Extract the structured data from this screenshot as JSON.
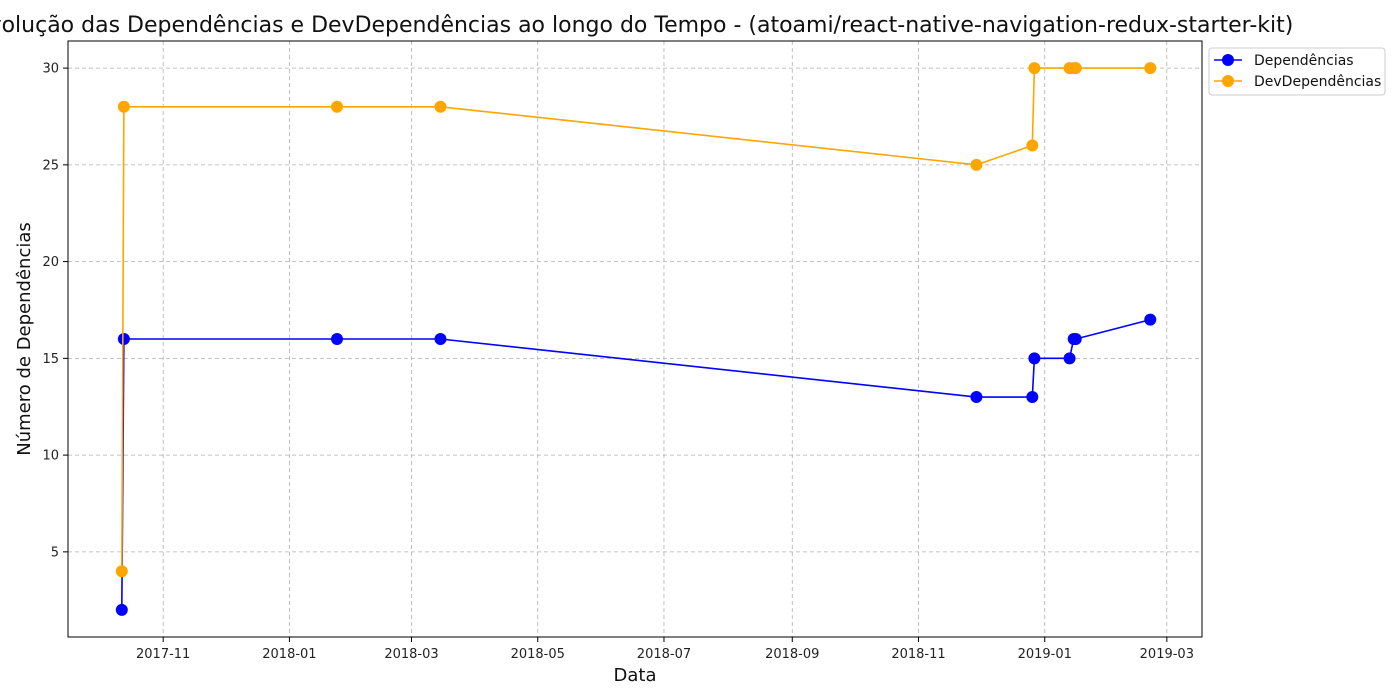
{
  "chart_data": {
    "type": "line",
    "title": "Evolução das Dependências e DevDependências ao longo do Tempo - (atoami/react-native-navigation-redux-starter-kit)",
    "xlabel": "Data",
    "ylabel": "Número de Dependências",
    "x_type": "date",
    "xlim": [
      "2017-09-16",
      "2019-03-18"
    ],
    "ylim": [
      0.6,
      31.4
    ],
    "x_ticks": [
      "2017-11-01",
      "2018-01-01",
      "2018-03-01",
      "2018-05-01",
      "2018-07-01",
      "2018-09-01",
      "2018-11-01",
      "2019-01-01",
      "2019-03-01"
    ],
    "x_tick_labels": [
      "2017-11",
      "2018-01",
      "2018-03",
      "2018-05",
      "2018-07",
      "2018-09",
      "2018-11",
      "2019-01",
      "2019-03"
    ],
    "y_ticks": [
      5,
      10,
      15,
      20,
      25,
      30
    ],
    "y_tick_labels": [
      "5",
      "10",
      "15",
      "20",
      "25",
      "30"
    ],
    "grid": true,
    "legend_position": "outside upper right",
    "series": [
      {
        "name": "Dependências",
        "color": "#0000ff",
        "x": [
          "2017-10-12",
          "2017-10-13",
          "2018-01-24",
          "2018-03-15",
          "2018-11-29",
          "2018-12-26",
          "2018-12-27",
          "2019-01-13",
          "2019-01-15",
          "2019-01-16",
          "2019-02-21"
        ],
        "y": [
          2,
          16,
          16,
          16,
          13,
          13,
          15,
          15,
          16,
          16,
          17
        ]
      },
      {
        "name": "DevDependências",
        "color": "#ffa500",
        "x": [
          "2017-10-12",
          "2017-10-13",
          "2018-01-24",
          "2018-03-15",
          "2018-11-29",
          "2018-12-26",
          "2018-12-27",
          "2019-01-13",
          "2019-01-15",
          "2019-01-16",
          "2019-02-21"
        ],
        "y": [
          4,
          28,
          28,
          28,
          25,
          26,
          30,
          30,
          30,
          30,
          30
        ]
      }
    ]
  }
}
